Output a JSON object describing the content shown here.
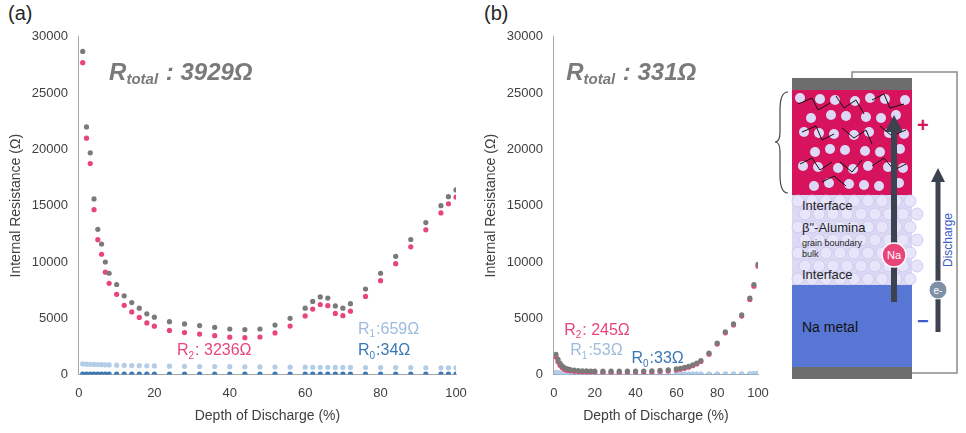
{
  "chart_data": [
    {
      "type": "scatter",
      "panel_label": "(a)",
      "xlabel": "Depth of Discharge (%)",
      "ylabel": "Internal Resistance (Ω)",
      "xlim": [
        0,
        100
      ],
      "xticks": [
        0,
        20,
        40,
        60,
        80,
        100
      ],
      "ylim": [
        0,
        30000
      ],
      "yticks": [
        0,
        5000,
        10000,
        15000,
        20000,
        25000,
        30000
      ],
      "grid": false,
      "x": [
        1,
        2,
        3,
        4,
        5,
        6,
        7,
        8,
        10,
        12,
        14,
        16,
        18,
        20,
        24,
        28,
        32,
        36,
        40,
        44,
        48,
        52,
        56,
        60,
        62,
        64,
        66,
        68,
        70,
        72,
        76,
        80,
        84,
        88,
        92,
        96,
        98,
        100
      ],
      "series": [
        {
          "color": "#7a7a7a",
          "marker": "circle",
          "values": [
            28700,
            22000,
            19700,
            15600,
            12900,
            11600,
            10000,
            9000,
            8000,
            7000,
            6400,
            5900,
            5400,
            5100,
            4700,
            4500,
            4350,
            4200,
            4050,
            4000,
            4050,
            4400,
            5000,
            5900,
            6500,
            6900,
            6800,
            6100,
            5900,
            6300,
            7600,
            9000,
            10500,
            12000,
            13500,
            15000,
            15800,
            16400
          ]
        },
        {
          "color": "#e8457a",
          "marker": "circle",
          "values": [
            27700,
            21000,
            18750,
            14650,
            11980,
            10690,
            9100,
            8110,
            7130,
            6150,
            5570,
            5080,
            4590,
            4300,
            3920,
            3730,
            3600,
            3460,
            3320,
            3280,
            3340,
            3700,
            4310,
            5210,
            5820,
            6220,
            6120,
            5430,
            5230,
            5630,
            6940,
            8340,
            9850,
            11350,
            12860,
            14360,
            15170,
            15770
          ]
        },
        {
          "color": "#b4cde6",
          "marker": "circle",
          "values": [
            950,
            930,
            910,
            900,
            890,
            880,
            870,
            860,
            840,
            820,
            800,
            790,
            780,
            770,
            750,
            735,
            720,
            710,
            700,
            690,
            680,
            670,
            660,
            655,
            650,
            650,
            645,
            640,
            640,
            635,
            630,
            625,
            620,
            615,
            610,
            605,
            600,
            600
          ]
        },
        {
          "color": "#3a77b5",
          "marker": "circle",
          "values": [
            36,
            36,
            35,
            35,
            35,
            35,
            35,
            35,
            34,
            34,
            34,
            34,
            34,
            34,
            34,
            34,
            34,
            34,
            34,
            34,
            34,
            34,
            34,
            34,
            34,
            34,
            34,
            34,
            34,
            34,
            34,
            34,
            34,
            34,
            34,
            34,
            34,
            34
          ]
        }
      ],
      "annotations": [
        {
          "text": "R",
          "sub": "total",
          "rest": " : 3929Ω",
          "color": "#7a7a7a"
        },
        {
          "text": "R",
          "sub": "2",
          "rest": ": 3236Ω",
          "color": "#e8457a"
        },
        {
          "text": "R",
          "sub": "1",
          "rest": ":659Ω",
          "color": "#9dbbdc"
        },
        {
          "text": "R",
          "sub": "0",
          "rest": ":34Ω",
          "color": "#3a77b5"
        }
      ]
    },
    {
      "type": "scatter",
      "panel_label": "(b)",
      "xlabel": "Depth of Discharge (%)",
      "ylabel": "Internal Resistance (Ω)",
      "xlim": [
        0,
        100
      ],
      "xticks": [
        0,
        20,
        40,
        60,
        80,
        100
      ],
      "ylim": [
        0,
        30000
      ],
      "yticks": [
        0,
        5000,
        10000,
        15000,
        20000,
        25000,
        30000
      ],
      "grid": false,
      "x": [
        1,
        2,
        3,
        4,
        5,
        6,
        7,
        8,
        10,
        12,
        14,
        16,
        18,
        20,
        24,
        28,
        32,
        36,
        40,
        44,
        48,
        52,
        56,
        60,
        62,
        64,
        66,
        68,
        70,
        72,
        76,
        80,
        84,
        88,
        92,
        96,
        98,
        100
      ],
      "series": [
        {
          "color": "#7a7a7a",
          "marker": "circle",
          "values": [
            1800,
            1350,
            1000,
            780,
            620,
            540,
            480,
            440,
            390,
            360,
            340,
            325,
            315,
            305,
            300,
            300,
            300,
            305,
            310,
            320,
            340,
            370,
            420,
            500,
            560,
            640,
            740,
            870,
            1030,
            1250,
            1900,
            2800,
            3800,
            4500,
            5300,
            6800,
            8000,
            9800
          ]
        },
        {
          "color": "#e8457a",
          "marker": "circle",
          "values": [
            1567,
            1147,
            827,
            627,
            487,
            417,
            367,
            332,
            289,
            265,
            249,
            237,
            229,
            220,
            216,
            217,
            217,
            222,
            227,
            237,
            257,
            287,
            337,
            417,
            477,
            557,
            656,
            785,
            945,
            1164,
            1813,
            2712,
            3710,
            4407,
            5197,
            6677,
            7857,
            9627
          ]
        },
        {
          "color": "#b4cde6",
          "marker": "circle",
          "values": [
            200,
            170,
            140,
            120,
            100,
            90,
            80,
            75,
            68,
            62,
            58,
            55,
            53,
            52,
            51,
            50,
            50,
            50,
            50,
            50,
            50,
            50,
            50,
            50,
            50,
            50,
            51,
            52,
            52,
            53,
            54,
            55,
            57,
            60,
            70,
            90,
            110,
            140
          ]
        },
        {
          "color": "#3a77b5",
          "marker": "circle",
          "values": [
            33,
            33,
            33,
            33,
            33,
            33,
            33,
            33,
            33,
            33,
            33,
            33,
            33,
            33,
            33,
            33,
            33,
            33,
            33,
            33,
            33,
            33,
            33,
            33,
            33,
            33,
            33,
            33,
            33,
            33,
            33,
            33,
            33,
            33,
            33,
            33,
            33,
            33
          ]
        }
      ],
      "annotations": [
        {
          "text": "R",
          "sub": "total",
          "rest": " : 331Ω",
          "color": "#7a7a7a"
        },
        {
          "text": "R",
          "sub": "2",
          "rest": ": 245Ω",
          "color": "#e8457a"
        },
        {
          "text": "R",
          "sub": "1",
          "rest": ":53Ω",
          "color": "#9dbbdc"
        },
        {
          "text": "R",
          "sub": "0",
          "rest": ":33Ω",
          "color": "#3a77b5"
        }
      ]
    }
  ],
  "diagram": {
    "interface_top": "Interface",
    "electrolyte": "β\"-Alumina",
    "grain_boundary": "grain boundary",
    "bulk": "bulk",
    "interface_bottom": "Interface",
    "anode": "Na metal",
    "ion": "Na",
    "electron": "e-",
    "positive": "+",
    "negative": "−",
    "process": "Discharge"
  }
}
